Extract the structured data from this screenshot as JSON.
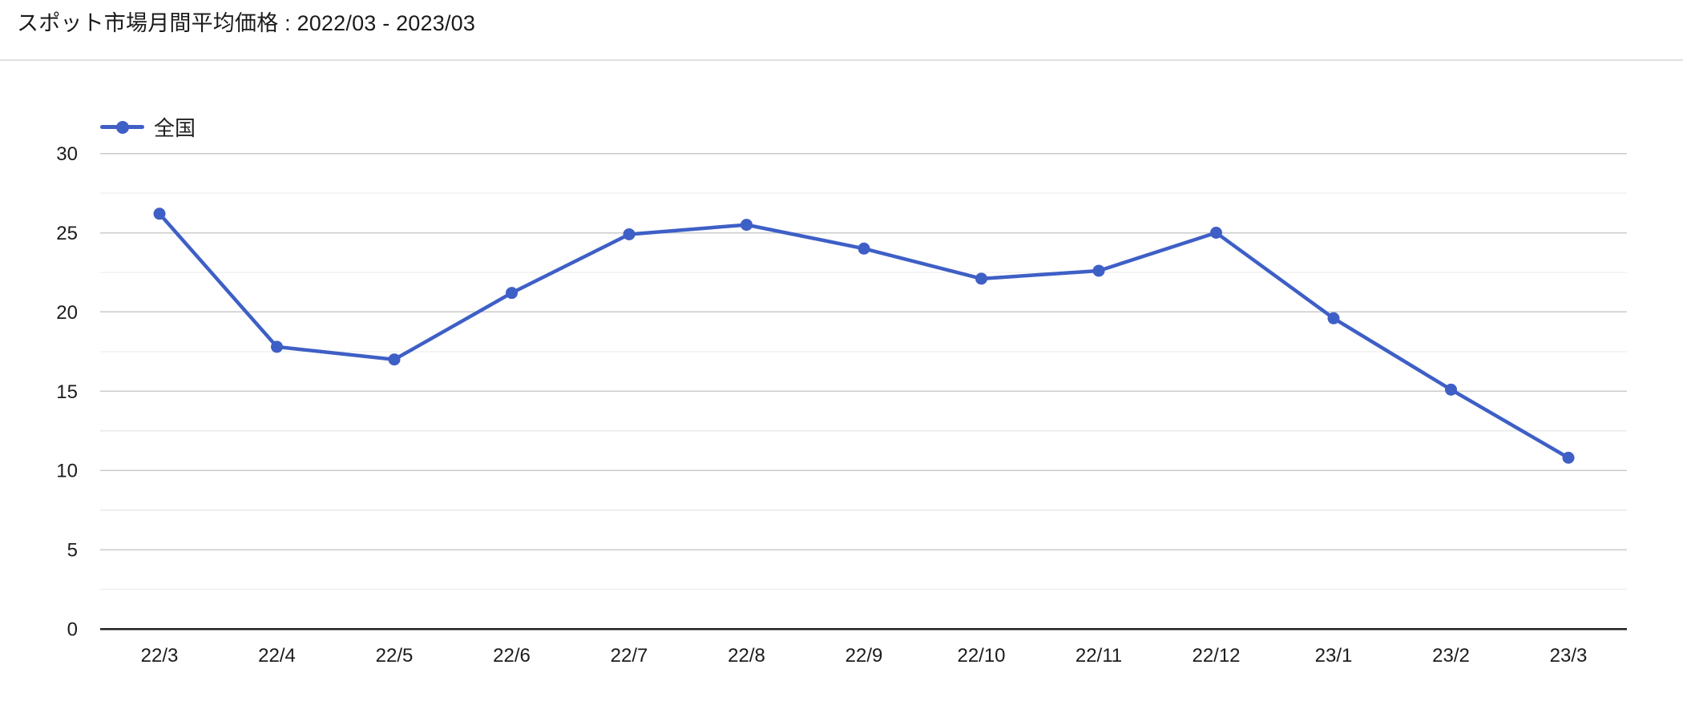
{
  "header": {
    "title": "スポット市場月間平均価格 : 2022/03 - 2023/03"
  },
  "colors": {
    "series_blue": "#3e5fc6",
    "grid_major": "#cbcbcb",
    "grid_minor": "#e8e8e8",
    "axis_baseline": "#212121",
    "text_dark": "#1c1c1c"
  },
  "chart_data": {
    "type": "line",
    "title": "スポット市場月間平均価格 : 2022/03 - 2023/03",
    "categories": [
      "22/3",
      "22/4",
      "22/5",
      "22/6",
      "22/7",
      "22/8",
      "22/9",
      "22/10",
      "22/11",
      "22/12",
      "23/1",
      "23/2",
      "23/3"
    ],
    "series": [
      {
        "name": "全国",
        "color": "#3e5fc6",
        "values": [
          26.2,
          17.8,
          17.0,
          21.2,
          24.9,
          25.5,
          24.0,
          22.1,
          22.6,
          25.0,
          19.6,
          15.1,
          10.8
        ]
      }
    ],
    "xlabel": "",
    "ylabel": "",
    "ylim": [
      0,
      30
    ],
    "ytick_major": 5,
    "ytick_minor": 2.5,
    "ytick_labels": [
      "0",
      "5",
      "10",
      "15",
      "20",
      "25",
      "30"
    ],
    "grid": true,
    "legend_position": "top-left"
  }
}
